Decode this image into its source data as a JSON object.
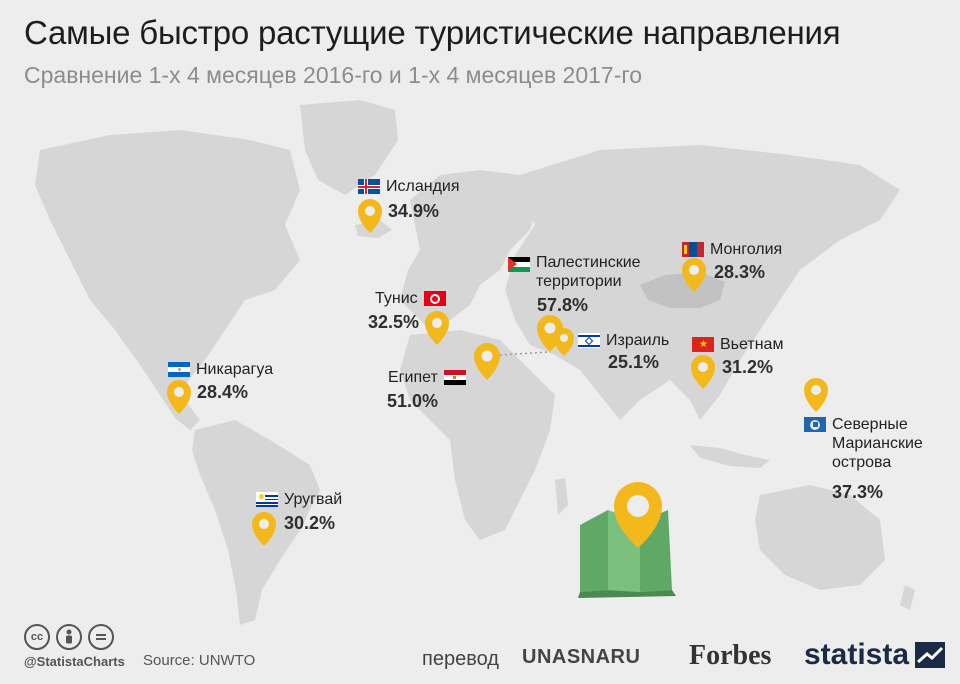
{
  "title": "Самые быстро растущие туристические направления",
  "subtitle": "Сравнение 1-х 4 месяцев 2016-го и 1-х 4 месяцев 2017-го",
  "destinations": [
    {
      "name": "Исландия",
      "value": "34.9%"
    },
    {
      "name": "Палестинские территории",
      "value": "57.8%"
    },
    {
      "name": "Монголия",
      "value": "28.3%"
    },
    {
      "name": "Тунис",
      "value": "32.5%"
    },
    {
      "name": "Израиль",
      "value": "25.1%"
    },
    {
      "name": "Вьетнам",
      "value": "31.2%"
    },
    {
      "name": "Никарагуа",
      "value": "28.4%"
    },
    {
      "name": "Египет",
      "value": "51.0%"
    },
    {
      "name": "Северные Марианские острова",
      "value": "37.3%"
    },
    {
      "name": "Уругвай",
      "value": "30.2%"
    }
  ],
  "footer": {
    "handle": "@StatistaCharts",
    "source": "Source: UNWTO",
    "translation_label": "перевод",
    "translator": "UNASNARU",
    "forbes": "Forbes",
    "statista": "statista",
    "cc_icons": [
      "cc",
      "by",
      "nd"
    ]
  },
  "colors": {
    "land": "#d6d6d6",
    "water": "#ededed",
    "marker": "#f3b81b",
    "mongolia_land": "#c2c2c2",
    "map_icon_green": "#7bc07f"
  }
}
